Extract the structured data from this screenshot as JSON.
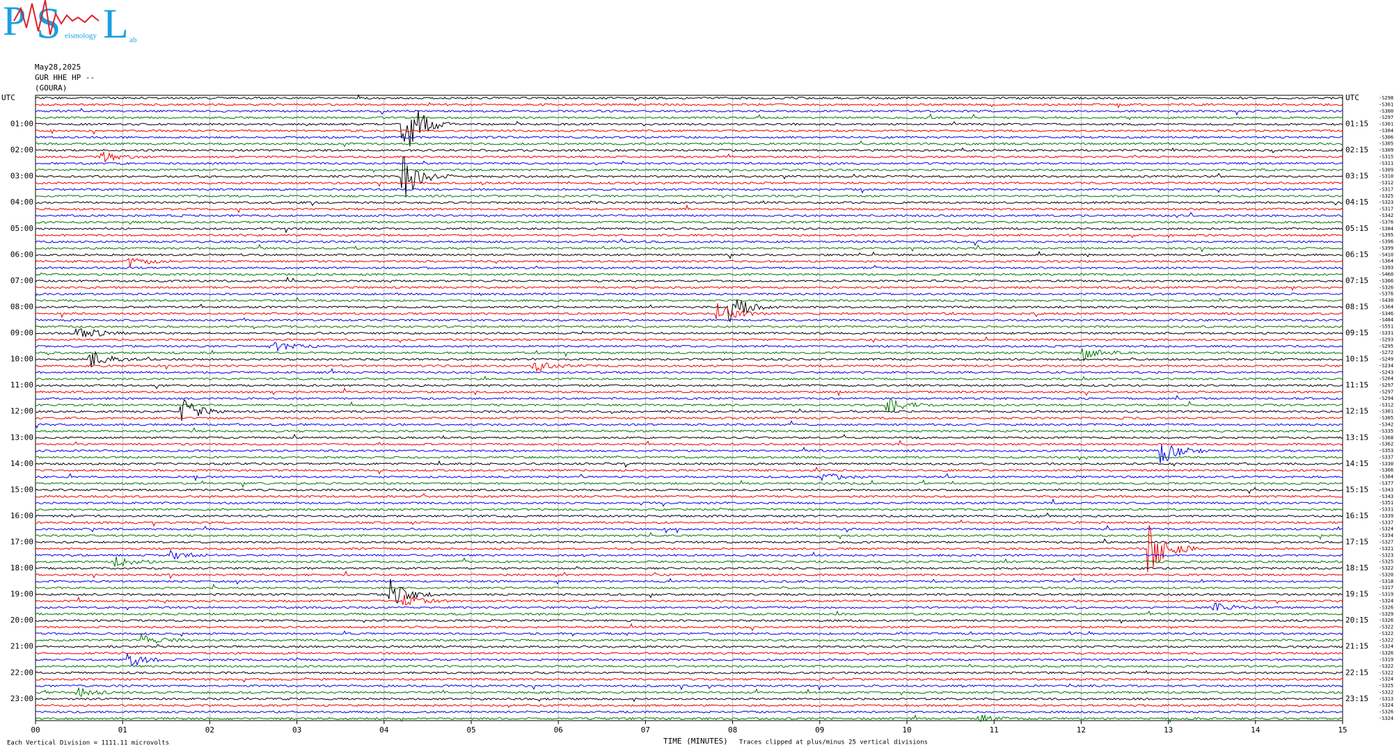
{
  "logo": {
    "letters": [
      "P",
      "S",
      "L"
    ],
    "small": [
      "eismology",
      "ab"
    ]
  },
  "header": {
    "date": "May28,2025",
    "station": "GUR HHE HP --",
    "site": "(GOURA)"
  },
  "left_labels": [
    "UTC",
    "01:00",
    "02:00",
    "03:00",
    "04:00",
    "05:00",
    "06:00",
    "07:00",
    "08:00",
    "09:00",
    "10:00",
    "11:00",
    "12:00",
    "13:00",
    "14:00",
    "15:00",
    "16:00",
    "17:00",
    "18:00",
    "19:00",
    "20:00",
    "21:00",
    "22:00",
    "23:00"
  ],
  "right_labels": [
    "UTC",
    "01:15",
    "02:15",
    "03:15",
    "04:15",
    "05:15",
    "06:15",
    "07:15",
    "08:15",
    "09:15",
    "10:15",
    "11:15",
    "12:15",
    "13:15",
    "14:15",
    "15:15",
    "16:15",
    "17:15",
    "18:15",
    "19:15",
    "20:15",
    "21:15",
    "22:15",
    "23:15"
  ],
  "trace_offsets": [
    "-S298",
    "-S301",
    "-S300",
    "-S297",
    "-S301",
    "-S304",
    "-S306",
    "-S305",
    "-S309",
    "-S315",
    "-S311",
    "-S309",
    "-S310",
    "-S312",
    "-S317",
    "-S325",
    "-S323",
    "-S317",
    "-S342",
    "-S376",
    "-S384",
    "-S395",
    "-S396",
    "-S399",
    "-S410",
    "-S364",
    "-S393",
    "-S460",
    "-S366",
    "-S326",
    "-S376",
    "-S430",
    "-S364",
    "-S346",
    "-S484",
    "-S551",
    "-S331",
    "-S293",
    "-S295",
    "-S272",
    "-S249",
    "-S234",
    "-S243",
    "-S264",
    "-S297",
    "-S297",
    "-S294",
    "-S312",
    "-S301",
    "-S305",
    "-S342",
    "-S335",
    "-S368",
    "-S362",
    "-S353",
    "-S337",
    "-S330",
    "-S366",
    "-S384",
    "-S377",
    "-S343",
    "-S343",
    "-S351",
    "-S331",
    "-S339",
    "-S337",
    "-S324",
    "-S334",
    "-S327",
    "-S321",
    "-S323",
    "-S325",
    "-S322",
    "-S320",
    "-S318",
    "-S317",
    "-S319",
    "-S324",
    "-S326",
    "-S329",
    "-S326",
    "-S322",
    "-S322",
    "-S322",
    "-S324",
    "-S326",
    "-S319",
    "-S322",
    "-S322",
    "-S324",
    "-S325",
    "-S322",
    "-S313",
    "-S324",
    "-S326",
    "-S324"
  ],
  "x_labels": [
    "00",
    "01",
    "02",
    "03",
    "04",
    "05",
    "06",
    "07",
    "08",
    "09",
    "10",
    "11",
    "12",
    "13",
    "14",
    "15"
  ],
  "footer": {
    "scale": "Each Vertical Division = 1111.11 microvolts",
    "axis_title": "TIME (MINUTES)",
    "clip": "Traces clipped at plus/minus 25 vertical divisions"
  }
}
